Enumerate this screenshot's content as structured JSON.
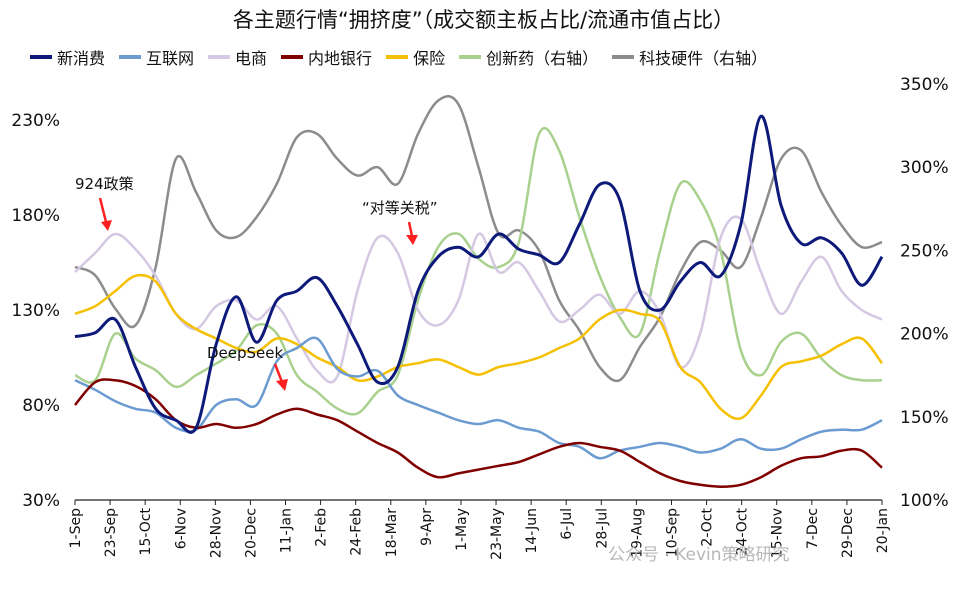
{
  "chart_data": {
    "type": "line",
    "title": "各主题行情“拥挤度”（成交额主板占比/流通市值占比）",
    "x_ticks": [
      "1-Sep",
      "23-Sep",
      "15-Oct",
      "6-Nov",
      "28-Nov",
      "20-Dec",
      "11-Jan",
      "2-Feb",
      "24-Feb",
      "18-Mar",
      "9-Apr",
      "1-May",
      "23-May",
      "14-Jun",
      "6-Jul",
      "28-Jul",
      "19-Aug",
      "10-Sep",
      "2-Oct",
      "24-Oct",
      "15-Nov",
      "7-Dec",
      "29-Dec",
      "20-Jan"
    ],
    "y_left": {
      "ticks": [
        "30%",
        "80%",
        "130%",
        "180%",
        "230%"
      ],
      "min": 30,
      "max": 230
    },
    "y_right": {
      "ticks": [
        "100%",
        "150%",
        "200%",
        "250%",
        "300%",
        "350%"
      ],
      "min": 100,
      "max": 350
    },
    "legend_position": "top",
    "series": [
      {
        "name": "新消费",
        "color": "#0d1a7a",
        "axis": "left",
        "width": 3,
        "values": [
          116,
          118,
          125,
          100,
          78,
          72,
          68,
          112,
          137,
          113,
          135,
          140,
          147,
          132,
          112,
          92,
          100,
          140,
          158,
          163,
          158,
          170,
          162,
          159,
          155,
          175,
          196,
          188,
          140,
          130,
          145,
          155,
          148,
          175,
          232,
          185,
          165,
          168,
          160,
          143,
          158
        ]
      },
      {
        "name": "互联网",
        "color": "#6b9bd1",
        "axis": "left",
        "width": 2.5,
        "values": [
          93,
          88,
          82,
          78,
          76,
          68,
          67,
          80,
          83,
          80,
          103,
          110,
          115,
          99,
          95,
          98,
          85,
          80,
          76,
          72,
          70,
          72,
          68,
          66,
          60,
          58,
          52,
          56,
          58,
          60,
          58,
          55,
          57,
          62,
          57,
          57,
          62,
          66,
          67,
          67,
          72
        ]
      },
      {
        "name": "电商",
        "color": "#d5c8e3",
        "axis": "left",
        "width": 2.5,
        "values": [
          150,
          160,
          170,
          162,
          148,
          128,
          120,
          132,
          135,
          125,
          132,
          115,
          98,
          95,
          140,
          168,
          160,
          130,
          122,
          135,
          170,
          150,
          155,
          140,
          124,
          130,
          138,
          128,
          140,
          128,
          100,
          118,
          168,
          178,
          150,
          128,
          145,
          158,
          140,
          130,
          125
        ]
      },
      {
        "name": "内地银行",
        "color": "#800000",
        "axis": "left",
        "width": 2.5,
        "values": [
          80,
          92,
          93,
          90,
          83,
          72,
          68,
          70,
          68,
          70,
          75,
          78,
          75,
          72,
          66,
          60,
          55,
          47,
          42,
          44,
          46,
          48,
          50,
          54,
          58,
          60,
          58,
          56,
          50,
          44,
          40,
          38,
          37,
          38,
          42,
          48,
          52,
          53,
          56,
          56,
          47
        ]
      },
      {
        "name": "保险",
        "color": "#f5c000",
        "axis": "left",
        "width": 2.5,
        "values": [
          128,
          132,
          140,
          148,
          145,
          128,
          120,
          115,
          110,
          108,
          115,
          112,
          105,
          100,
          93,
          95,
          100,
          102,
          104,
          100,
          96,
          100,
          102,
          105,
          110,
          115,
          125,
          130,
          128,
          124,
          100,
          92,
          78,
          73,
          85,
          100,
          103,
          106,
          112,
          115,
          102
        ]
      },
      {
        "name": "创新药（右轴）",
        "color": "#a9d18e",
        "axis": "right",
        "width": 2.5,
        "values": [
          175,
          172,
          200,
          185,
          178,
          168,
          175,
          182,
          190,
          205,
          200,
          175,
          165,
          155,
          152,
          165,
          175,
          220,
          252,
          260,
          245,
          240,
          255,
          320,
          310,
          270,
          235,
          210,
          200,
          250,
          290,
          280,
          250,
          190,
          175,
          195,
          200,
          185,
          175,
          172,
          172
        ]
      },
      {
        "name": "科技硬件（右轴）",
        "color": "#8c8c8c",
        "axis": "right",
        "width": 2.5,
        "values": [
          240,
          235,
          215,
          205,
          240,
          305,
          285,
          262,
          258,
          270,
          290,
          318,
          320,
          305,
          295,
          300,
          290,
          320,
          340,
          338,
          300,
          260,
          262,
          250,
          220,
          202,
          180,
          172,
          192,
          210,
          237,
          255,
          250,
          240,
          270,
          305,
          310,
          285,
          265,
          252,
          255
        ]
      }
    ],
    "annotations": [
      "924政策",
      "DeepSeek",
      "“对等关税”"
    ]
  },
  "watermark": "公众号 · Kevin策略研究"
}
